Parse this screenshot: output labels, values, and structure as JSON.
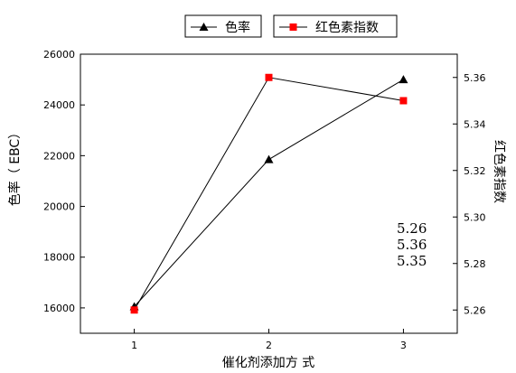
{
  "chart_data": {
    "type": "line",
    "x": [
      1,
      2,
      3
    ],
    "xlabel": "催化剂添加方 式",
    "x_ticks": [
      "1",
      "2",
      "3"
    ],
    "xlim": [
      0.6,
      3.4
    ],
    "series": [
      {
        "name": "色率",
        "axis": "left",
        "marker": "triangle",
        "color": "#000000",
        "values": [
          16050,
          21850,
          25000
        ]
      },
      {
        "name": "红色素指数",
        "axis": "right",
        "marker": "square",
        "color": "#ff0000",
        "values": [
          5.26,
          5.36,
          5.35
        ]
      }
    ],
    "y_left": {
      "label": "色率（ EBC）",
      "lim": [
        15000,
        26000
      ],
      "ticks": [
        "16000",
        "18000",
        "20000",
        "22000",
        "24000",
        "26000"
      ]
    },
    "y_right": {
      "label": "红色素指数",
      "lim": [
        5.25,
        5.37
      ],
      "ticks": [
        "5.26",
        "5.28",
        "5.30",
        "5.32",
        "5.34",
        "5.36"
      ]
    },
    "annotations": [
      "5.26",
      "5.36",
      "5.35"
    ],
    "legend_position": "top"
  }
}
